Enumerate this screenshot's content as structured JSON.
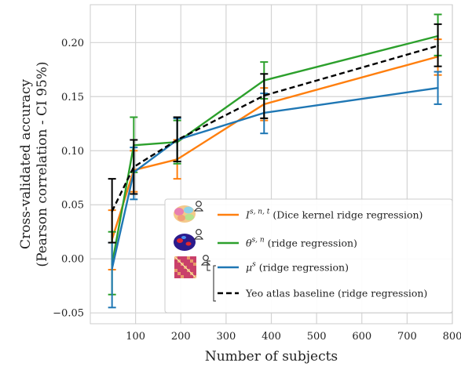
{
  "chart_data": {
    "type": "line",
    "title": "",
    "xlabel": "Number of subjects",
    "ylabel_lines": [
      "Cross-validated accuracy",
      "(Pearson correlation - CI 95%)"
    ],
    "xlim": [
      0,
      800
    ],
    "ylim": [
      -0.06,
      0.235
    ],
    "xticks": [
      100,
      200,
      300,
      400,
      500,
      600,
      700,
      800
    ],
    "xtick_labels": [
      "100",
      "200",
      "300",
      "400",
      "500",
      "600",
      "700",
      "800"
    ],
    "yticks": [
      -0.05,
      0.0,
      0.05,
      0.1,
      0.15,
      0.2
    ],
    "ytick_labels": [
      "−0.05",
      "0.00",
      "0.05",
      "0.10",
      "0.15",
      "0.20"
    ],
    "grid": true,
    "legend_position": "lower-right",
    "x": [
      48,
      96,
      192,
      384,
      768
    ],
    "series": [
      {
        "name": "I^{s,n,t} (Dice kernel ridge regression)",
        "legend_main": "I",
        "legend_sup": "s, n, t",
        "legend_rest": " (Dice kernel ridge regression)",
        "color": "#ff7f0e",
        "dashed": false,
        "values": [
          0.018,
          0.082,
          0.092,
          0.143,
          0.187
        ],
        "err_low": [
          -0.01,
          0.062,
          0.074,
          0.128,
          0.17
        ],
        "err_high": [
          0.045,
          0.1,
          0.11,
          0.158,
          0.203
        ],
        "icon": "brain-parcellation-icon"
      },
      {
        "name": "θ^{s,n} (ridge regression)",
        "legend_main": "θ",
        "legend_sup": "s, n",
        "legend_rest": " (ridge regression)",
        "color": "#2ca02c",
        "dashed": false,
        "values": [
          -0.005,
          0.105,
          0.108,
          0.165,
          0.206
        ],
        "err_low": [
          -0.033,
          0.08,
          0.088,
          0.148,
          0.188
        ],
        "err_high": [
          0.025,
          0.131,
          0.128,
          0.182,
          0.226
        ],
        "icon": "brain-activation-icon"
      },
      {
        "name": "μ^{s} (ridge regression)",
        "legend_main": "μ",
        "legend_sup": "s",
        "legend_rest": " (ridge regression)",
        "color": "#1f77b4",
        "dashed": false,
        "values": [
          -0.009,
          0.08,
          0.11,
          0.135,
          0.158
        ],
        "err_low": [
          -0.045,
          0.055,
          0.09,
          0.116,
          0.143
        ],
        "err_high": [
          0.015,
          0.103,
          0.13,
          0.153,
          0.173
        ],
        "icon": "connectivity-matrix-icon"
      },
      {
        "name": "Yeo atlas baseline (ridge regression)",
        "legend_main": "Yeo atlas baseline (ridge regression)",
        "legend_sup": "",
        "legend_rest": "",
        "color": "#000000",
        "dashed": true,
        "values": [
          0.044,
          0.085,
          0.11,
          0.151,
          0.197
        ],
        "err_low": [
          0.015,
          0.06,
          0.09,
          0.13,
          0.178
        ],
        "err_high": [
          0.074,
          0.11,
          0.131,
          0.171,
          0.217
        ],
        "icon": ""
      }
    ]
  },
  "colors": {
    "grid": "#d3d3d3",
    "axes": "#cccccc",
    "legend_border": "#cccccc",
    "icon_matrix": "#c9406a",
    "icon_brain_dark": "#2b1b8c"
  }
}
